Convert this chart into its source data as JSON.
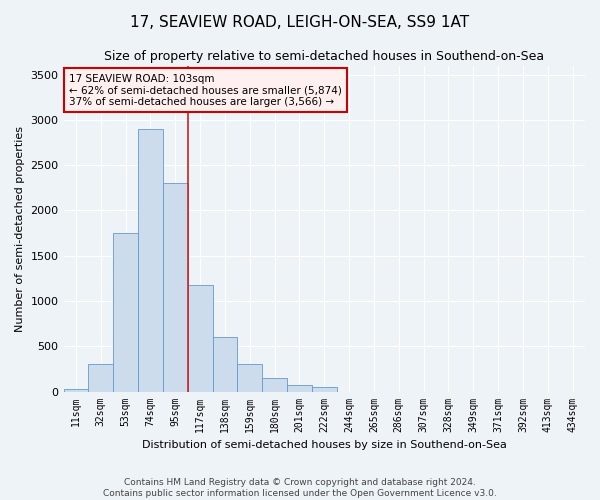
{
  "title": "17, SEAVIEW ROAD, LEIGH-ON-SEA, SS9 1AT",
  "subtitle": "Size of property relative to semi-detached houses in Southend-on-Sea",
  "xlabel": "Distribution of semi-detached houses by size in Southend-on-Sea",
  "ylabel": "Number of semi-detached properties",
  "footer1": "Contains HM Land Registry data © Crown copyright and database right 2024.",
  "footer2": "Contains public sector information licensed under the Open Government Licence v3.0.",
  "categories": [
    "11sqm",
    "32sqm",
    "53sqm",
    "74sqm",
    "95sqm",
    "117sqm",
    "138sqm",
    "159sqm",
    "180sqm",
    "201sqm",
    "222sqm",
    "244sqm",
    "265sqm",
    "286sqm",
    "307sqm",
    "328sqm",
    "349sqm",
    "371sqm",
    "392sqm",
    "413sqm",
    "434sqm"
  ],
  "values": [
    25,
    300,
    1750,
    2900,
    2300,
    1175,
    600,
    300,
    150,
    75,
    50,
    0,
    0,
    0,
    0,
    0,
    0,
    0,
    0,
    0,
    0
  ],
  "bar_color": "#ccdcec",
  "bar_edge_color": "#6699cc",
  "annotation_box_facecolor": "#fff0f0",
  "annotation_box_edge": "#cc0000",
  "vline_color": "#cc2222",
  "vline_x_index": 4,
  "annotation_title": "17 SEAVIEW ROAD: 103sqm",
  "annotation_line1": "← 62% of semi-detached houses are smaller (5,874)",
  "annotation_line2": "37% of semi-detached houses are larger (3,566) →",
  "ylim": [
    0,
    3600
  ],
  "yticks": [
    0,
    500,
    1000,
    1500,
    2000,
    2500,
    3000,
    3500
  ],
  "bg_color": "#eef3f8",
  "grid_color": "#ffffff",
  "title_fontsize": 11,
  "subtitle_fontsize": 9,
  "ylabel_fontsize": 8,
  "xlabel_fontsize": 8,
  "tick_fontsize": 7,
  "footer_fontsize": 6.5
}
